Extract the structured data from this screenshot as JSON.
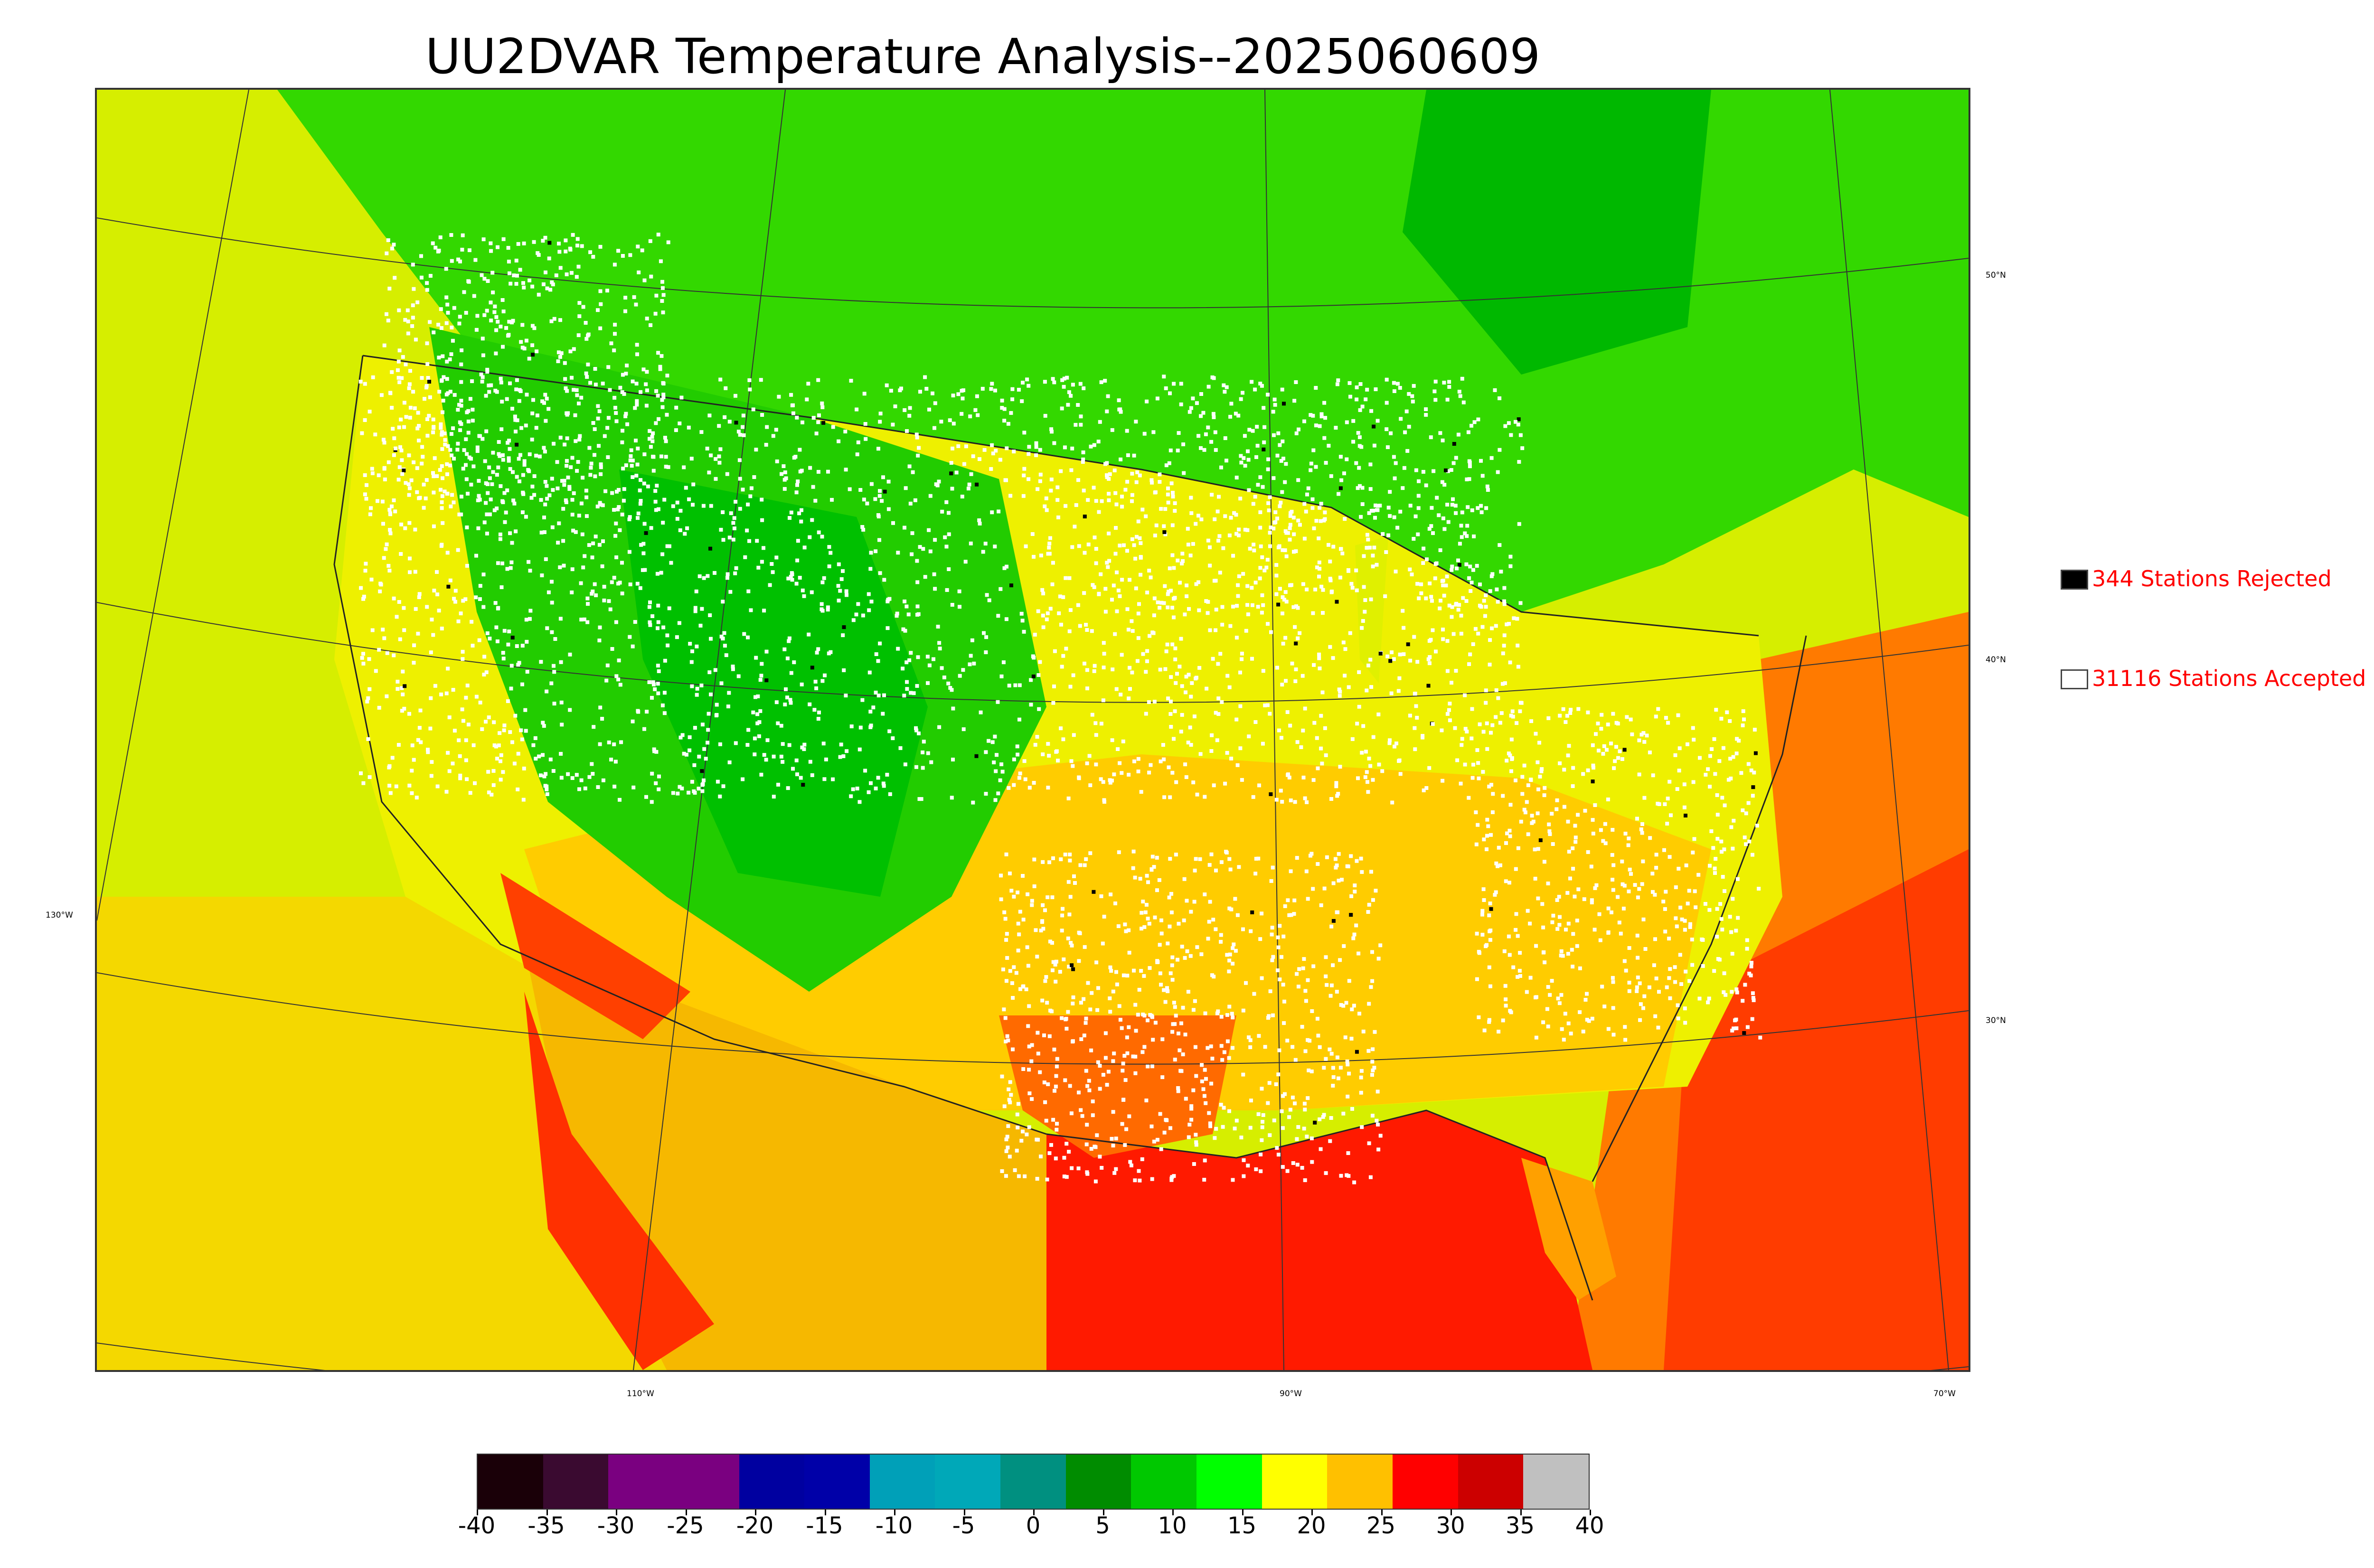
{
  "title": "UU2DVAR Temperature Analysis--2025060609",
  "legend": {
    "rejected": {
      "label": "344 Stations Rejected",
      "swatch_color": "#000000"
    },
    "accepted": {
      "label": "31116 Stations Accepted",
      "swatch_color": "#ffffff"
    }
  },
  "graticule": {
    "lon_labels": [
      "130°W",
      "110°W",
      "90°W",
      "70°W"
    ],
    "lat_labels": [
      "50°N",
      "40°N",
      "30°N"
    ]
  },
  "colorbar": {
    "tick_labels": [
      "-40",
      "-35",
      "-30",
      "-25",
      "-20",
      "-15",
      "-10",
      "-5",
      "0",
      "5",
      "10",
      "15",
      "20",
      "25",
      "30",
      "35",
      "40"
    ],
    "colors": [
      "#1a0008",
      "#3a0a30",
      "#7a0080",
      "#7a0080",
      "#0000a0",
      "#0000a8",
      "#00a0b8",
      "#00a8b8",
      "#009080",
      "#008c00",
      "#00c800",
      "#00ff00",
      "#ffff00",
      "#ffc000",
      "#ff0000",
      "#cc0000",
      "#c0c0c0"
    ]
  },
  "map": {
    "colors": {
      "ocean_pacific": "#d4f000",
      "canada": "#2dd800",
      "rockies": "#00c000",
      "plains": "#f4f000",
      "south": "#ffd000",
      "gulf": "#ff2000",
      "atlantic": "#ff6a00",
      "station_accepted": "#ffffff",
      "station_rejected": "#000000"
    }
  }
}
